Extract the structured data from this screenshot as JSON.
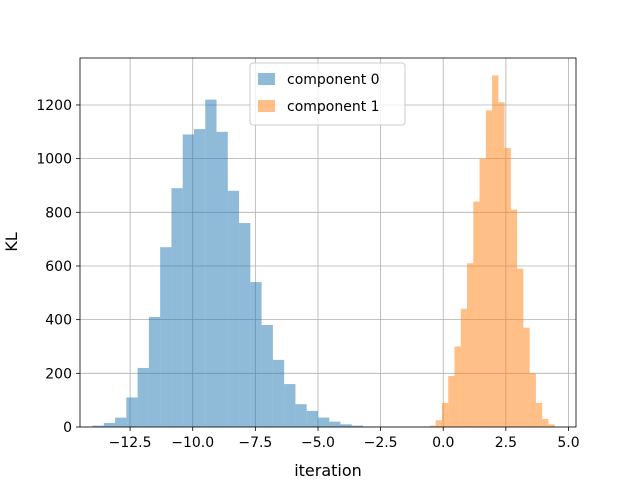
{
  "chart_data": {
    "type": "histogram",
    "xlabel": "iteration",
    "ylabel": "KL",
    "xlim": [
      -14.5,
      5.3
    ],
    "ylim": [
      0,
      1375
    ],
    "grid": true,
    "legend_position": "upper center",
    "x_ticks": [
      -12.5,
      -10.0,
      -7.5,
      -5.0,
      -2.5,
      0.0,
      2.5,
      5.0
    ],
    "x_tick_labels": [
      "−12.5",
      "−10.0",
      "−7.5",
      "−5.0",
      "−2.5",
      "0.0",
      "2.5",
      "5.0"
    ],
    "y_ticks": [
      0,
      200,
      400,
      600,
      800,
      1000,
      1200
    ],
    "y_tick_labels": [
      "0",
      "200",
      "400",
      "600",
      "800",
      "1000",
      "1200"
    ],
    "series": [
      {
        "name": "component 0",
        "color": "#1f77b4",
        "alpha": 0.5,
        "bin_edges": [
          -14.0,
          -13.55,
          -13.1,
          -12.65,
          -12.2,
          -11.75,
          -11.3,
          -10.85,
          -10.4,
          -9.95,
          -9.5,
          -9.05,
          -8.6,
          -8.15,
          -7.7,
          -7.25,
          -6.8,
          -6.35,
          -5.9,
          -5.45,
          -5.0,
          -4.55,
          -4.1,
          -3.65,
          -3.2,
          -2.75,
          -2.3
        ],
        "counts": [
          5,
          15,
          35,
          110,
          220,
          410,
          670,
          890,
          1090,
          1110,
          1220,
          1100,
          880,
          760,
          540,
          380,
          250,
          160,
          85,
          60,
          35,
          20,
          10,
          5,
          2,
          1
        ]
      },
      {
        "name": "component 1",
        "color": "#ff7f0e",
        "alpha": 0.5,
        "bin_edges": [
          -0.55,
          -0.3,
          -0.05,
          0.2,
          0.45,
          0.7,
          0.95,
          1.2,
          1.45,
          1.7,
          1.95,
          2.2,
          2.45,
          2.7,
          2.95,
          3.2,
          3.45,
          3.7,
          3.95,
          4.2,
          4.45
        ],
        "counts": [
          5,
          25,
          90,
          190,
          300,
          440,
          610,
          840,
          1000,
          1180,
          1310,
          1210,
          1040,
          810,
          590,
          370,
          200,
          90,
          30,
          10
        ]
      }
    ]
  }
}
